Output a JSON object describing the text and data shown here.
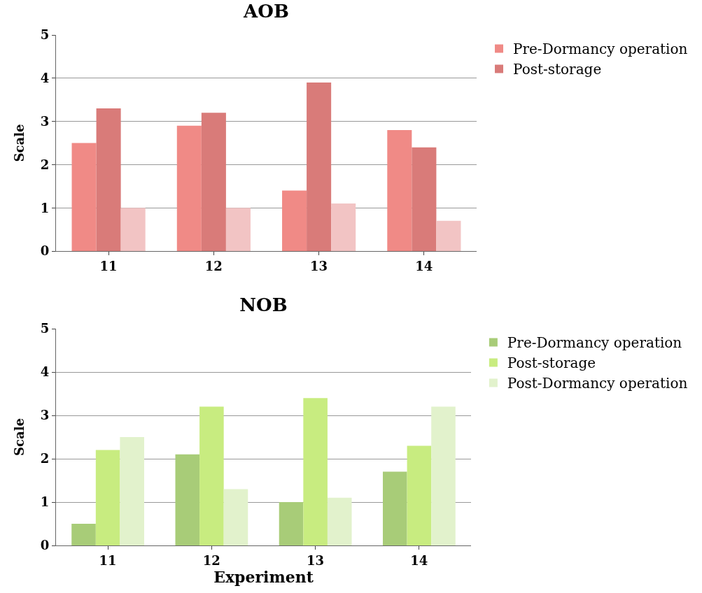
{
  "chart_data": [
    {
      "type": "bar",
      "title": "AOB",
      "ylabel": "Scale",
      "categories": [
        "11",
        "12",
        "13",
        "14"
      ],
      "ylim": [
        0,
        5
      ],
      "yticks": [
        0,
        1,
        2,
        3,
        4,
        5
      ],
      "grid": "y",
      "legend": "right",
      "series": [
        {
          "name": "Pre-Dormancy operation",
          "color": "#f08a86",
          "values": [
            2.5,
            2.9,
            1.4,
            2.8
          ]
        },
        {
          "name": "Post-storage",
          "color": "#d97b79",
          "values": [
            3.3,
            3.2,
            3.9,
            2.4
          ]
        },
        {
          "color": "#f2c4c4",
          "values": [
            1.0,
            1.0,
            1.1,
            0.7
          ]
        }
      ]
    },
    {
      "type": "bar",
      "title": "NOB",
      "ylabel": "Scale",
      "xlabel": "Experiment",
      "categories": [
        "11",
        "12",
        "13",
        "14"
      ],
      "ylim": [
        0,
        5
      ],
      "yticks": [
        0,
        1,
        2,
        3,
        4,
        5
      ],
      "grid": "y",
      "legend": "right",
      "series": [
        {
          "name": "Pre-Dormancy operation",
          "color": "#a8cc78",
          "values": [
            0.5,
            2.1,
            1.0,
            1.7
          ]
        },
        {
          "name": "Post-storage",
          "color": "#c8ec80",
          "values": [
            2.2,
            3.2,
            3.4,
            2.3
          ]
        },
        {
          "name": "Post-Dormancy operation",
          "color": "#e2f2cc",
          "values": [
            2.5,
            1.3,
            1.1,
            3.2
          ]
        }
      ]
    }
  ]
}
